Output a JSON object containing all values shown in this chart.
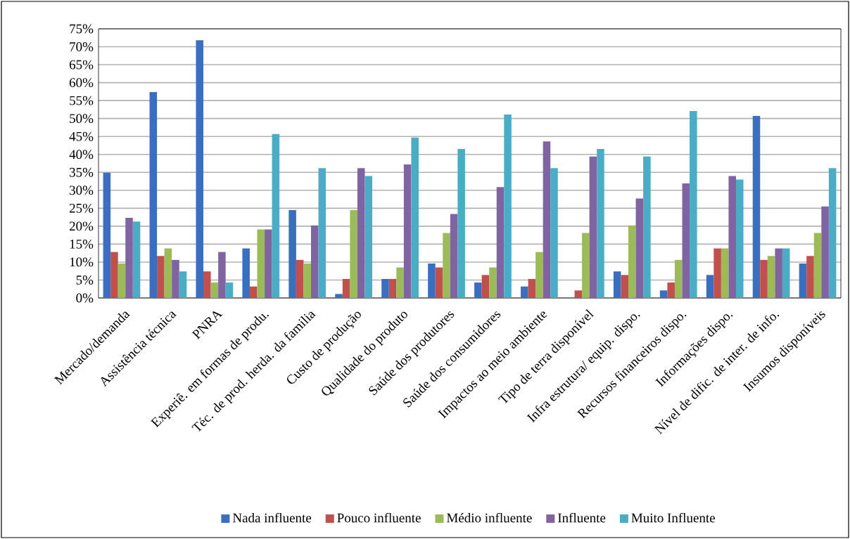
{
  "chart_data": {
    "type": "bar",
    "categories": [
      "Mercado/demanda",
      "Assistência técnica",
      "PNRA",
      "Experiê. em formas de produ.",
      "Téc. de prod. herda. da familia",
      "Custo de produção",
      "Qualidade do produto",
      "Saúde dos produtores",
      "Saúde dos consumidores",
      "Impactos ao meio ambiente",
      "Tipo de terra disponível",
      "Infra estrutura/ equip. dispo.",
      "Recursos financeiros dispo.",
      "Informações dispo.",
      "Nível de dific. de inter. de info.",
      "Insumos disponíveis"
    ],
    "series": [
      {
        "name": "Nada influente",
        "color": "#3a6fbf",
        "values": [
          34.9,
          57.4,
          71.8,
          13.8,
          24.5,
          1.1,
          5.3,
          9.6,
          4.3,
          3.2,
          null,
          7.4,
          2.1,
          6.4,
          50.7,
          9.6
        ]
      },
      {
        "name": "Pouco influente",
        "color": "#c0504d",
        "values": [
          12.8,
          11.7,
          7.4,
          3.2,
          10.6,
          5.3,
          5.3,
          8.5,
          6.4,
          5.3,
          2.1,
          6.4,
          4.3,
          13.8,
          10.6,
          11.7
        ]
      },
      {
        "name": "Médio influente",
        "color": "#9bbb59",
        "values": [
          9.6,
          13.8,
          4.3,
          19.1,
          9.6,
          24.5,
          8.5,
          18.1,
          8.5,
          12.8,
          18.1,
          20.2,
          10.6,
          13.8,
          11.7,
          18.1
        ]
      },
      {
        "name": "Influente",
        "color": "#8064a2",
        "values": [
          22.3,
          10.6,
          12.8,
          19.1,
          20.2,
          36.2,
          37.2,
          23.4,
          30.9,
          43.6,
          39.4,
          27.7,
          31.9,
          34.0,
          13.8,
          25.5
        ]
      },
      {
        "name": "Muito Influente",
        "color": "#4bacc6",
        "values": [
          21.3,
          7.4,
          4.3,
          45.7,
          36.2,
          34.0,
          44.7,
          41.5,
          51.1,
          36.2,
          41.5,
          39.4,
          52.1,
          33.0,
          13.8,
          36.2
        ]
      }
    ],
    "ylim": [
      0,
      75
    ],
    "yticks": [
      {
        "value": 0,
        "label": "0%"
      },
      {
        "value": 5,
        "label": "5%"
      },
      {
        "value": 10,
        "label": "10%"
      },
      {
        "value": 15,
        "label": "15%"
      },
      {
        "value": 20,
        "label": "20%"
      },
      {
        "value": 25,
        "label": "25%"
      },
      {
        "value": 30,
        "label": "30%"
      },
      {
        "value": 35,
        "label": "35%"
      },
      {
        "value": 40,
        "label": "40%"
      },
      {
        "value": 45,
        "label": "45%"
      },
      {
        "value": 50,
        "label": "50%"
      },
      {
        "value": 55,
        "label": "55%"
      },
      {
        "value": 60,
        "label": "60%"
      },
      {
        "value": 65,
        "label": "65%"
      },
      {
        "value": 70,
        "label": "70%"
      },
      {
        "value": 75,
        "label": "75%"
      }
    ],
    "grid": "y",
    "legend": "bottom"
  }
}
